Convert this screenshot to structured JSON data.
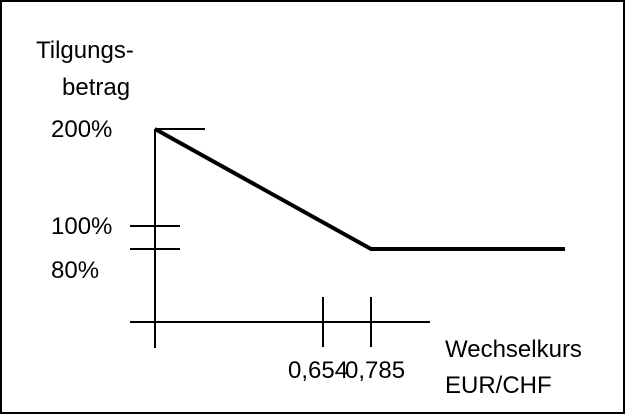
{
  "chart_data": {
    "type": "line",
    "ylabel_lines": [
      "Tilgungs-",
      "betrag"
    ],
    "xlabel_lines": [
      "Wechselkurs",
      "EUR/CHF"
    ],
    "y_tick_labels": [
      {
        "value": 200,
        "label": "200%"
      },
      {
        "value": 100,
        "label": "100%"
      },
      {
        "value": 80,
        "label": "80%"
      }
    ],
    "x_tick_labels": [
      {
        "value": 0.654,
        "label": "0,654"
      },
      {
        "value": 0.785,
        "label": "0,785"
      }
    ],
    "series": [
      {
        "x": [
          0.0,
          0.785,
          1.3
        ],
        "y": [
          200,
          80,
          80
        ]
      }
    ],
    "colors": {
      "line": "#000000",
      "axis": "#000000",
      "frame": "#000000"
    }
  }
}
